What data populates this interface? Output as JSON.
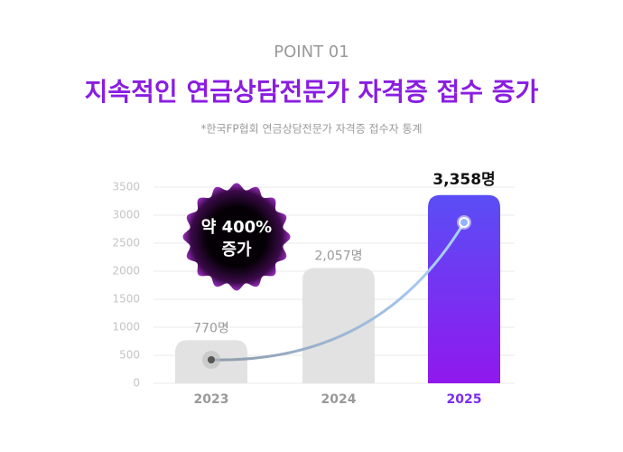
{
  "chart_data": {
    "type": "bar",
    "subtitle": "POINT 01",
    "title": "지속적인 연금상담전문가 자격증 접수 증가",
    "note": "*한국FP협회 연금상담전문가 자격증 접수자 통계",
    "annotation": [
      "약 400%",
      "증가"
    ],
    "categories": [
      "2023",
      "2024",
      "2025"
    ],
    "values": [
      770,
      2057,
      3358
    ],
    "value_labels": [
      "770명",
      "2,057명",
      "3,358명"
    ],
    "colors": [
      "#e2e2e2",
      "#e2e2e2",
      "#7a2cf2"
    ],
    "highlight_gradient": [
      "#5a4ef5",
      "#9018ee"
    ],
    "ylim": [
      0,
      3500
    ],
    "yticks": [
      0,
      500,
      1000,
      1500,
      2000,
      2500,
      3000,
      3500
    ],
    "grid": true
  }
}
